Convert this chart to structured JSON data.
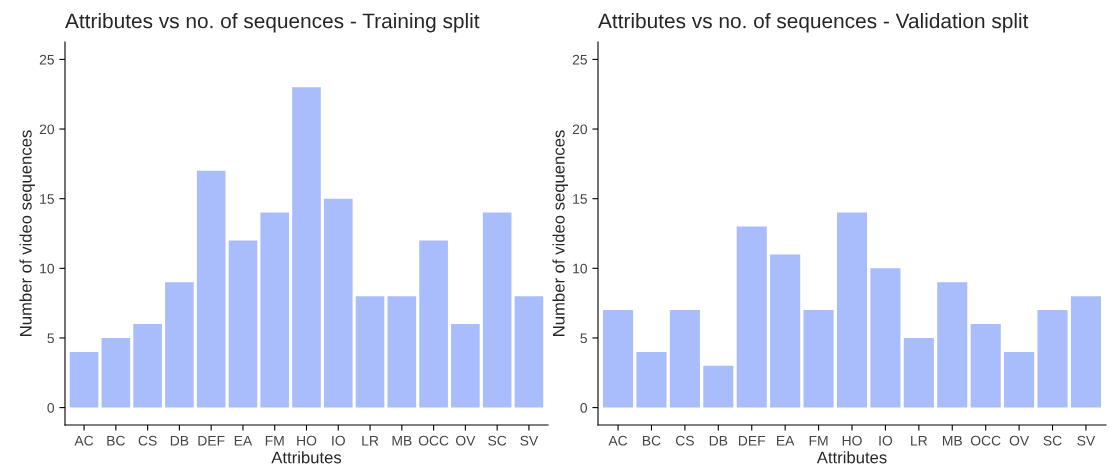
{
  "chart_data": [
    {
      "type": "bar",
      "title": "Attributes vs no. of sequences - Training split",
      "xlabel": "Attributes",
      "ylabel": "Number of video sequences",
      "categories": [
        "AC",
        "BC",
        "CS",
        "DB",
        "DEF",
        "EA",
        "FM",
        "HO",
        "IO",
        "LR",
        "MB",
        "OCC",
        "OV",
        "SC",
        "SV"
      ],
      "values": [
        4,
        5,
        6,
        9,
        17,
        12,
        14,
        23,
        15,
        8,
        8,
        12,
        6,
        14,
        8
      ],
      "color": "#a9bcfb",
      "ylim": [
        -1.25,
        26.25
      ],
      "yticks": [
        0,
        5,
        10,
        15,
        20,
        25
      ],
      "grid": false,
      "legend": false
    },
    {
      "type": "bar",
      "title": "Attributes vs no. of sequences - Validation split",
      "xlabel": "Attributes",
      "ylabel": "Number of video sequences",
      "categories": [
        "AC",
        "BC",
        "CS",
        "DB",
        "DEF",
        "EA",
        "FM",
        "HO",
        "IO",
        "LR",
        "MB",
        "OCC",
        "OV",
        "SC",
        "SV"
      ],
      "values": [
        7,
        4,
        7,
        3,
        13,
        11,
        7,
        14,
        10,
        5,
        9,
        6,
        4,
        7,
        8
      ],
      "color": "#a9bcfb",
      "ylim": [
        -1.25,
        26.25
      ],
      "yticks": [
        0,
        5,
        10,
        15,
        20,
        25
      ],
      "grid": false,
      "legend": false
    }
  ]
}
